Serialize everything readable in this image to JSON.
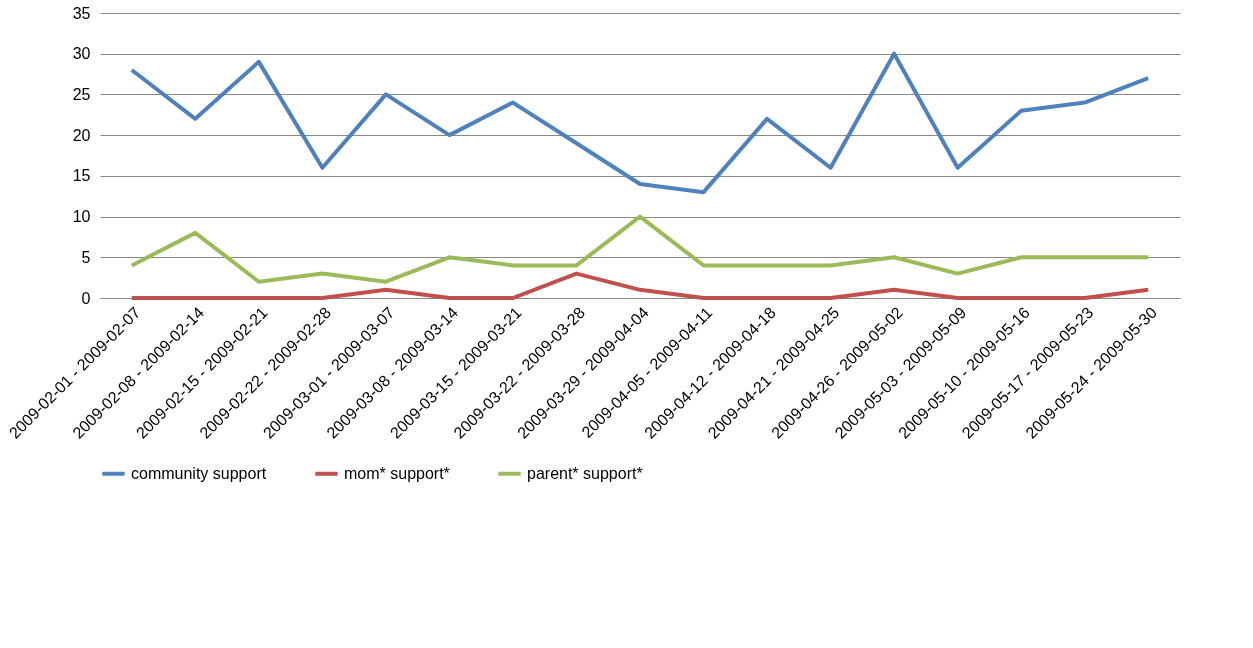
{
  "chart_data": {
    "type": "line",
    "categories": [
      "2009-02-01 - 2009-02-07",
      "2009-02-08 - 2009-02-14",
      "2009-02-15 - 2009-02-21",
      "2009-02-22 - 2009-02-28",
      "2009-03-01 - 2009-03-07",
      "2009-03-08 - 2009-03-14",
      "2009-03-15 - 2009-03-21",
      "2009-03-22 - 2009-03-28",
      "2009-03-29 - 2009-04-04",
      "2009-04-05 - 2009-04-11",
      "2009-04-12 - 2009-04-18",
      "2009-04-21 - 2009-04-25",
      "2009-04-26 - 2009-05-02",
      "2009-05-03 - 2009-05-09",
      "2009-05-10 - 2009-05-16",
      "2009-05-17 - 2009-05-23",
      "2009-05-24 - 2009-05-30"
    ],
    "series": [
      {
        "name": "community support",
        "color": "#4f81bd",
        "values": [
          28,
          22,
          29,
          16,
          25,
          20,
          24,
          19,
          14,
          13,
          22,
          16,
          30,
          16,
          23,
          24,
          27
        ]
      },
      {
        "name": "mom* support*",
        "color": "#c0504d",
        "values": [
          0,
          0,
          0,
          0,
          1,
          0,
          0,
          3,
          1,
          0,
          0,
          0,
          1,
          0,
          0,
          0,
          1
        ]
      },
      {
        "name": "parent* support*",
        "color": "#9bbb59",
        "values": [
          4,
          8,
          2,
          3,
          2,
          5,
          4,
          4,
          10,
          4,
          4,
          4,
          5,
          3,
          5,
          5,
          5
        ]
      }
    ],
    "ylim": [
      0,
      35
    ],
    "yticks": [
      0,
      5,
      10,
      15,
      20,
      25,
      30,
      35
    ],
    "grid": "y",
    "legend": "bottom",
    "marker": "none",
    "line_style": "solid"
  }
}
